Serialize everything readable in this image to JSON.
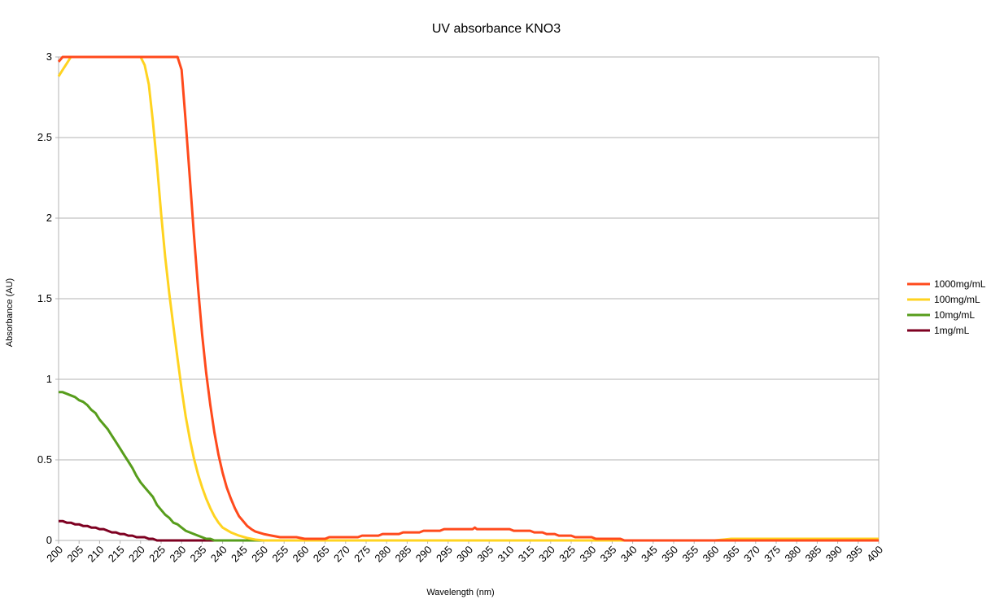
{
  "chart_data": {
    "type": "line",
    "title": "UV absorbance KNO3",
    "xlabel": "Wavelength (nm)",
    "ylabel": "Absorbance (AU)",
    "xlim": [
      200,
      400
    ],
    "ylim": [
      0,
      3
    ],
    "x_ticks": [
      "200",
      "205",
      "210",
      "215",
      "220",
      "225",
      "230",
      "235",
      "240",
      "245",
      "250",
      "255",
      "260",
      "265",
      "270",
      "275",
      "280",
      "285",
      "290",
      "295",
      "300",
      "305",
      "310",
      "315",
      "320",
      "325",
      "330",
      "335",
      "340",
      "345",
      "350",
      "355",
      "360",
      "365",
      "370",
      "375",
      "380",
      "385",
      "390",
      "395",
      "400"
    ],
    "y_ticks": [
      "0",
      "0.5",
      "1",
      "1.5",
      "2",
      "2.5",
      "3"
    ],
    "grid": "horizontal",
    "legend_position": "right",
    "series": [
      {
        "name": "1000mg/mL",
        "color": "#ff4a1c",
        "points": [
          [
            200,
            2.97
          ],
          [
            201,
            3
          ],
          [
            228,
            3
          ],
          [
            229,
            3
          ],
          [
            230,
            2.92
          ],
          [
            231,
            2.6
          ],
          [
            232,
            2.25
          ],
          [
            233,
            1.9
          ],
          [
            234,
            1.57
          ],
          [
            235,
            1.28
          ],
          [
            236,
            1.04
          ],
          [
            237,
            0.84
          ],
          [
            238,
            0.67
          ],
          [
            239,
            0.53
          ],
          [
            240,
            0.42
          ],
          [
            241,
            0.33
          ],
          [
            242,
            0.26
          ],
          [
            243,
            0.2
          ],
          [
            244,
            0.15
          ],
          [
            245,
            0.12
          ],
          [
            246,
            0.09
          ],
          [
            247,
            0.07
          ],
          [
            248,
            0.055
          ],
          [
            250,
            0.04
          ],
          [
            252,
            0.03
          ],
          [
            254,
            0.02
          ],
          [
            258,
            0.02
          ],
          [
            260,
            0.01
          ],
          [
            265,
            0.01
          ],
          [
            266,
            0.02
          ],
          [
            273,
            0.02
          ],
          [
            274,
            0.03
          ],
          [
            278,
            0.03
          ],
          [
            279,
            0.04
          ],
          [
            283,
            0.04
          ],
          [
            284,
            0.05
          ],
          [
            288,
            0.05
          ],
          [
            289,
            0.06
          ],
          [
            293,
            0.06
          ],
          [
            294,
            0.07
          ],
          [
            301,
            0.07
          ],
          [
            301.5,
            0.08
          ],
          [
            302,
            0.07
          ],
          [
            310,
            0.07
          ],
          [
            311,
            0.06
          ],
          [
            315,
            0.06
          ],
          [
            316,
            0.05
          ],
          [
            318,
            0.05
          ],
          [
            319,
            0.04
          ],
          [
            321,
            0.04
          ],
          [
            322,
            0.03
          ],
          [
            325,
            0.03
          ],
          [
            326,
            0.02
          ],
          [
            330,
            0.02
          ],
          [
            331,
            0.01
          ],
          [
            337,
            0.01
          ],
          [
            338,
            0
          ],
          [
            400,
            0
          ]
        ]
      },
      {
        "name": "100mg/mL",
        "color": "#ffd320",
        "points": [
          [
            200,
            2.88
          ],
          [
            201,
            2.92
          ],
          [
            202,
            2.96
          ],
          [
            203,
            3
          ],
          [
            220,
            3
          ],
          [
            221,
            2.95
          ],
          [
            222,
            2.83
          ],
          [
            223,
            2.6
          ],
          [
            224,
            2.33
          ],
          [
            225,
            2.03
          ],
          [
            226,
            1.76
          ],
          [
            227,
            1.53
          ],
          [
            228,
            1.33
          ],
          [
            229,
            1.13
          ],
          [
            230,
            0.94
          ],
          [
            231,
            0.77
          ],
          [
            232,
            0.63
          ],
          [
            233,
            0.51
          ],
          [
            234,
            0.41
          ],
          [
            235,
            0.33
          ],
          [
            236,
            0.26
          ],
          [
            237,
            0.2
          ],
          [
            238,
            0.15
          ],
          [
            239,
            0.11
          ],
          [
            240,
            0.08
          ],
          [
            242,
            0.05
          ],
          [
            244,
            0.03
          ],
          [
            246,
            0.015
          ],
          [
            248,
            0.005
          ],
          [
            250,
            0
          ],
          [
            360,
            0
          ],
          [
            364,
            0.01
          ],
          [
            400,
            0.01
          ]
        ]
      },
      {
        "name": "10mg/mL",
        "color": "#579d1c",
        "points": [
          [
            200,
            0.92
          ],
          [
            201,
            0.92
          ],
          [
            202,
            0.91
          ],
          [
            203,
            0.9
          ],
          [
            204,
            0.89
          ],
          [
            205,
            0.87
          ],
          [
            206,
            0.86
          ],
          [
            207,
            0.84
          ],
          [
            208,
            0.81
          ],
          [
            209,
            0.79
          ],
          [
            210,
            0.75
          ],
          [
            211,
            0.72
          ],
          [
            212,
            0.69
          ],
          [
            213,
            0.65
          ],
          [
            214,
            0.61
          ],
          [
            215,
            0.57
          ],
          [
            216,
            0.53
          ],
          [
            217,
            0.49
          ],
          [
            218,
            0.45
          ],
          [
            219,
            0.4
          ],
          [
            220,
            0.36
          ],
          [
            221,
            0.33
          ],
          [
            222,
            0.3
          ],
          [
            223,
            0.27
          ],
          [
            224,
            0.22
          ],
          [
            225,
            0.19
          ],
          [
            226,
            0.16
          ],
          [
            227,
            0.14
          ],
          [
            228,
            0.11
          ],
          [
            229,
            0.1
          ],
          [
            230,
            0.08
          ],
          [
            231,
            0.06
          ],
          [
            232,
            0.05
          ],
          [
            233,
            0.04
          ],
          [
            234,
            0.03
          ],
          [
            235,
            0.02
          ],
          [
            236,
            0.01
          ],
          [
            237,
            0.01
          ],
          [
            238,
            0
          ],
          [
            400,
            0
          ]
        ]
      },
      {
        "name": "1mg/mL",
        "color": "#7e0021",
        "points": [
          [
            200,
            0.12
          ],
          [
            201,
            0.12
          ],
          [
            202,
            0.11
          ],
          [
            203,
            0.11
          ],
          [
            204,
            0.1
          ],
          [
            205,
            0.1
          ],
          [
            206,
            0.09
          ],
          [
            207,
            0.09
          ],
          [
            208,
            0.08
          ],
          [
            209,
            0.08
          ],
          [
            210,
            0.07
          ],
          [
            211,
            0.07
          ],
          [
            212,
            0.06
          ],
          [
            213,
            0.05
          ],
          [
            214,
            0.05
          ],
          [
            215,
            0.04
          ],
          [
            216,
            0.04
          ],
          [
            217,
            0.03
          ],
          [
            218,
            0.03
          ],
          [
            219,
            0.02
          ],
          [
            220,
            0.02
          ],
          [
            221,
            0.02
          ],
          [
            222,
            0.01
          ],
          [
            223,
            0.01
          ],
          [
            224,
            0
          ],
          [
            228,
            0
          ],
          [
            385,
            0
          ],
          [
            400,
            0
          ]
        ]
      }
    ]
  }
}
